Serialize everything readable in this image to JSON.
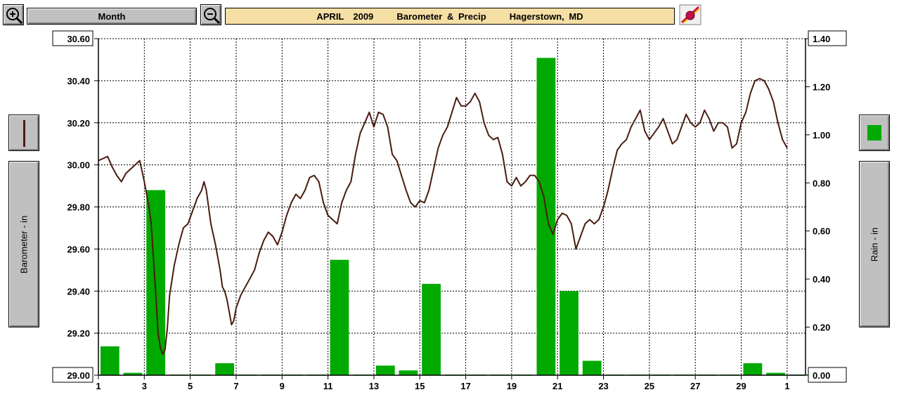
{
  "toolbar": {
    "zoom_in_icon": "magnifier-plus-icon",
    "zoom_out_icon": "magnifier-minus-icon",
    "period_label": "Month",
    "title": "APRIL  2009     Barometer & Precip     Hagerstown, MD",
    "print_icon": "printer-icon"
  },
  "left_panel": {
    "legend_swatch_color": "#4a1c10",
    "axis_button_label": "Barometer - in"
  },
  "right_panel": {
    "legend_swatch_color": "#00aa00",
    "axis_button_label": "Rain - in"
  },
  "chart_data": {
    "type": "bar+line",
    "title": "APRIL  2009     Barometer & Precip     Hagerstown, MD",
    "x_tick_labels": [
      "1",
      "3",
      "5",
      "7",
      "9",
      "11",
      "13",
      "15",
      "17",
      "19",
      "21",
      "23",
      "25",
      "27",
      "29",
      "1"
    ],
    "x_range": [
      1,
      31.8
    ],
    "grid": true,
    "left_axis": {
      "label": "Barometer - in",
      "range": [
        29.0,
        30.6
      ],
      "ticks": [
        "29.00",
        "29.20",
        "29.40",
        "29.60",
        "29.80",
        "30.00",
        "30.20",
        "30.40",
        "30.60"
      ]
    },
    "right_axis": {
      "label": "Rain - in",
      "range": [
        0.0,
        1.4
      ],
      "ticks": [
        "0.00",
        "0.20",
        "0.40",
        "0.60",
        "0.80",
        "1.00",
        "1.20",
        "1.40"
      ]
    },
    "series": [
      {
        "name": "Rain - in",
        "kind": "bar",
        "color": "#00aa00",
        "days": [
          1,
          2,
          3,
          4,
          5,
          6,
          7,
          8,
          9,
          10,
          11,
          12,
          13,
          14,
          15,
          16,
          17,
          18,
          19,
          20,
          21,
          22,
          23,
          24,
          25,
          26,
          27,
          28,
          29,
          30,
          31
        ],
        "values": [
          0.12,
          0.01,
          0.77,
          0.0,
          0.0,
          0.05,
          0.0,
          0.0,
          0.0,
          0.0,
          0.48,
          0.0,
          0.04,
          0.02,
          0.38,
          0.0,
          0.0,
          0.0,
          0.0,
          1.32,
          0.35,
          0.06,
          0.0,
          0.0,
          0.0,
          0.0,
          0.0,
          0.0,
          0.05,
          0.01,
          0.0
        ]
      },
      {
        "name": "Barometer - in",
        "kind": "line",
        "color": "#4a1c10",
        "points": [
          [
            1.0,
            30.02
          ],
          [
            1.2,
            30.03
          ],
          [
            1.4,
            30.04
          ],
          [
            1.6,
            29.99
          ],
          [
            1.8,
            29.95
          ],
          [
            2.0,
            29.92
          ],
          [
            2.2,
            29.96
          ],
          [
            2.4,
            29.98
          ],
          [
            2.6,
            30.0
          ],
          [
            2.8,
            30.02
          ],
          [
            3.0,
            29.92
          ],
          [
            3.2,
            29.8
          ],
          [
            3.3,
            29.72
          ],
          [
            3.4,
            29.55
          ],
          [
            3.5,
            29.38
          ],
          [
            3.6,
            29.2
          ],
          [
            3.7,
            29.13
          ],
          [
            3.8,
            29.1
          ],
          [
            3.9,
            29.12
          ],
          [
            4.0,
            29.22
          ],
          [
            4.1,
            29.38
          ],
          [
            4.3,
            29.52
          ],
          [
            4.5,
            29.62
          ],
          [
            4.7,
            29.7
          ],
          [
            4.9,
            29.72
          ],
          [
            5.1,
            29.78
          ],
          [
            5.3,
            29.84
          ],
          [
            5.5,
            29.88
          ],
          [
            5.6,
            29.92
          ],
          [
            5.7,
            29.88
          ],
          [
            5.9,
            29.72
          ],
          [
            6.1,
            29.62
          ],
          [
            6.3,
            29.5
          ],
          [
            6.4,
            29.42
          ],
          [
            6.5,
            29.4
          ],
          [
            6.6,
            29.36
          ],
          [
            6.7,
            29.3
          ],
          [
            6.8,
            29.24
          ],
          [
            6.9,
            29.26
          ],
          [
            7.0,
            29.32
          ],
          [
            7.2,
            29.38
          ],
          [
            7.4,
            29.42
          ],
          [
            7.6,
            29.46
          ],
          [
            7.8,
            29.5
          ],
          [
            8.0,
            29.58
          ],
          [
            8.2,
            29.64
          ],
          [
            8.4,
            29.68
          ],
          [
            8.6,
            29.66
          ],
          [
            8.8,
            29.62
          ],
          [
            9.0,
            29.68
          ],
          [
            9.2,
            29.76
          ],
          [
            9.4,
            29.82
          ],
          [
            9.6,
            29.86
          ],
          [
            9.8,
            29.84
          ],
          [
            10.0,
            29.88
          ],
          [
            10.2,
            29.94
          ],
          [
            10.4,
            29.95
          ],
          [
            10.6,
            29.92
          ],
          [
            10.8,
            29.82
          ],
          [
            11.0,
            29.76
          ],
          [
            11.2,
            29.74
          ],
          [
            11.4,
            29.72
          ],
          [
            11.6,
            29.82
          ],
          [
            11.8,
            29.88
          ],
          [
            12.0,
            29.92
          ],
          [
            12.2,
            30.05
          ],
          [
            12.4,
            30.15
          ],
          [
            12.6,
            30.2
          ],
          [
            12.8,
            30.25
          ],
          [
            13.0,
            30.18
          ],
          [
            13.2,
            30.25
          ],
          [
            13.4,
            30.24
          ],
          [
            13.6,
            30.18
          ],
          [
            13.8,
            30.05
          ],
          [
            14.0,
            30.02
          ],
          [
            14.2,
            29.95
          ],
          [
            14.4,
            29.88
          ],
          [
            14.6,
            29.82
          ],
          [
            14.8,
            29.8
          ],
          [
            15.0,
            29.83
          ],
          [
            15.2,
            29.82
          ],
          [
            15.4,
            29.88
          ],
          [
            15.6,
            29.98
          ],
          [
            15.8,
            30.08
          ],
          [
            16.0,
            30.14
          ],
          [
            16.2,
            30.18
          ],
          [
            16.4,
            30.25
          ],
          [
            16.6,
            30.32
          ],
          [
            16.8,
            30.28
          ],
          [
            17.0,
            30.28
          ],
          [
            17.2,
            30.3
          ],
          [
            17.4,
            30.34
          ],
          [
            17.6,
            30.3
          ],
          [
            17.8,
            30.2
          ],
          [
            18.0,
            30.14
          ],
          [
            18.2,
            30.12
          ],
          [
            18.4,
            30.13
          ],
          [
            18.6,
            30.05
          ],
          [
            18.8,
            29.92
          ],
          [
            19.0,
            29.9
          ],
          [
            19.2,
            29.94
          ],
          [
            19.4,
            29.9
          ],
          [
            19.6,
            29.92
          ],
          [
            19.8,
            29.95
          ],
          [
            20.0,
            29.95
          ],
          [
            20.2,
            29.92
          ],
          [
            20.4,
            29.85
          ],
          [
            20.6,
            29.72
          ],
          [
            20.8,
            29.67
          ],
          [
            21.0,
            29.74
          ],
          [
            21.2,
            29.77
          ],
          [
            21.4,
            29.76
          ],
          [
            21.6,
            29.72
          ],
          [
            21.8,
            29.6
          ],
          [
            22.0,
            29.66
          ],
          [
            22.2,
            29.72
          ],
          [
            22.4,
            29.74
          ],
          [
            22.6,
            29.72
          ],
          [
            22.8,
            29.74
          ],
          [
            23.0,
            29.8
          ],
          [
            23.2,
            29.88
          ],
          [
            23.4,
            29.98
          ],
          [
            23.6,
            30.07
          ],
          [
            23.8,
            30.1
          ],
          [
            24.0,
            30.12
          ],
          [
            24.2,
            30.18
          ],
          [
            24.4,
            30.22
          ],
          [
            24.6,
            30.26
          ],
          [
            24.8,
            30.16
          ],
          [
            25.0,
            30.12
          ],
          [
            25.2,
            30.15
          ],
          [
            25.4,
            30.18
          ],
          [
            25.6,
            30.22
          ],
          [
            25.8,
            30.16
          ],
          [
            26.0,
            30.1
          ],
          [
            26.2,
            30.12
          ],
          [
            26.4,
            30.18
          ],
          [
            26.6,
            30.24
          ],
          [
            26.8,
            30.2
          ],
          [
            27.0,
            30.18
          ],
          [
            27.2,
            30.2
          ],
          [
            27.4,
            30.26
          ],
          [
            27.6,
            30.22
          ],
          [
            27.8,
            30.16
          ],
          [
            28.0,
            30.2
          ],
          [
            28.2,
            30.2
          ],
          [
            28.4,
            30.18
          ],
          [
            28.6,
            30.08
          ],
          [
            28.8,
            30.1
          ],
          [
            29.0,
            30.2
          ],
          [
            29.2,
            30.25
          ],
          [
            29.4,
            30.34
          ],
          [
            29.6,
            30.4
          ],
          [
            29.8,
            30.41
          ],
          [
            30.0,
            30.4
          ],
          [
            30.2,
            30.36
          ],
          [
            30.4,
            30.3
          ],
          [
            30.6,
            30.2
          ],
          [
            30.8,
            30.12
          ],
          [
            31.0,
            30.08
          ]
        ]
      }
    ]
  }
}
